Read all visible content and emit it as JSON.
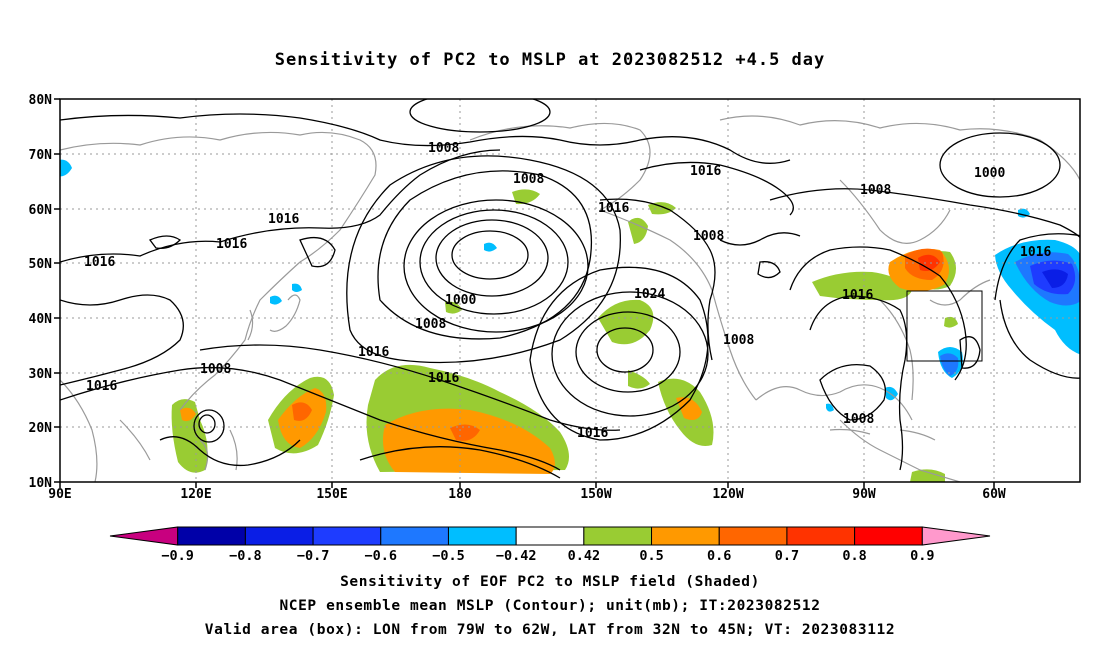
{
  "title": "Sensitivity of PC2 to MSLP at 2023082512 +4.5 day",
  "map": {
    "lat_labels": [
      "80N",
      "70N",
      "60N",
      "50N",
      "40N",
      "30N",
      "20N",
      "10N"
    ],
    "lon_labels": [
      "90E",
      "120E",
      "150E",
      "180",
      "150W",
      "120W",
      "90W",
      "60W"
    ],
    "contour_labels": [
      {
        "text": "1008"
      },
      {
        "text": "1016"
      },
      {
        "text": "1016"
      },
      {
        "text": "1016"
      },
      {
        "text": "1008"
      },
      {
        "text": "1016"
      },
      {
        "text": "1008"
      },
      {
        "text": "1000"
      },
      {
        "text": "1008"
      },
      {
        "text": "1016"
      },
      {
        "text": "1016"
      },
      {
        "text": "1016"
      },
      {
        "text": "1024"
      },
      {
        "text": "1016"
      },
      {
        "text": "1008"
      },
      {
        "text": "1008"
      },
      {
        "text": "1016"
      },
      {
        "text": "1008"
      },
      {
        "text": "1000"
      },
      {
        "text": "1016"
      },
      {
        "text": "1008"
      },
      {
        "text": "1016"
      },
      {
        "text": "1008"
      }
    ],
    "contour_unit": "mb",
    "valid_box": {
      "lon_from": "79W",
      "lon_to": "62W",
      "lat_from": "32N",
      "lat_to": "45N"
    }
  },
  "colorbar": {
    "tick_labels": [
      "-0.9",
      "-0.8",
      "-0.7",
      "-0.6",
      "-0.5",
      "-0.42",
      "0.42",
      "0.5",
      "0.6",
      "0.7",
      "0.8",
      "0.9"
    ],
    "colors": [
      "#c8007f",
      "#0000a8",
      "#0a1ee6",
      "#1e3cff",
      "#1e78ff",
      "#00beff",
      "#ffffff",
      "#99cc33",
      "#ff9900",
      "#ff6600",
      "#ff3300",
      "#ff0000",
      "#ff99cc"
    ]
  },
  "footer": {
    "line1": "Sensitivity of EOF PC2 to MSLP field (Shaded)",
    "line2": "NCEP ensemble mean MSLP (Contour); unit(mb); IT:2023082512",
    "line3": "Valid area (box): LON from 79W to 62W, LAT from 32N to 45N; VT: 2023083112"
  }
}
